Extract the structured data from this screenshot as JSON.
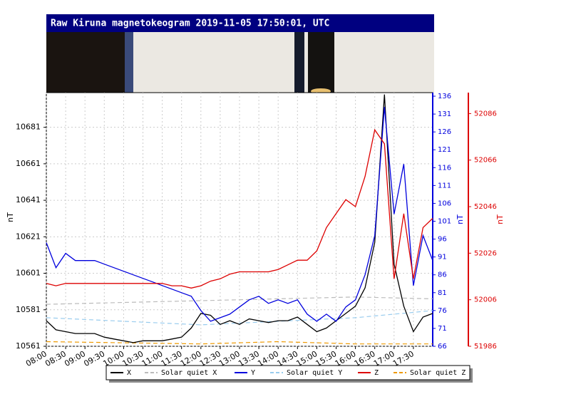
{
  "chart_data": {
    "type": "line",
    "title": "Raw Kiruna magnetokeogram 2019-11-05 17:50:01, UTC",
    "y_label": "nT",
    "y2_label": "nT",
    "y3_label": "nT",
    "x": [
      "08:00",
      "08:15",
      "08:30",
      "08:45",
      "09:00",
      "09:15",
      "09:30",
      "09:45",
      "10:00",
      "10:15",
      "10:30",
      "10:45",
      "11:00",
      "11:15",
      "11:30",
      "11:45",
      "12:00",
      "12:15",
      "12:30",
      "12:45",
      "13:00",
      "13:15",
      "13:30",
      "13:45",
      "14:00",
      "14:15",
      "14:30",
      "14:45",
      "15:00",
      "15:15",
      "15:30",
      "15:45",
      "16:00",
      "16:15",
      "16:30",
      "16:45",
      "17:00",
      "17:15",
      "17:30",
      "17:45",
      "18:00"
    ],
    "xlim": [
      "08:00",
      "18:00"
    ],
    "xticks": [
      "08:00",
      "08:30",
      "09:00",
      "09:30",
      "10:00",
      "10:30",
      "11:00",
      "11:30",
      "12:00",
      "12:30",
      "13:00",
      "13:30",
      "14:00",
      "14:30",
      "15:00",
      "15:30",
      "16:00",
      "16:30",
      "17:00",
      "17:30"
    ],
    "ylim": [
      10561,
      10700
    ],
    "yticks": [
      10561,
      10581,
      10601,
      10621,
      10641,
      10661,
      10681
    ],
    "y2lim": [
      66,
      137
    ],
    "y2ticks": [
      66,
      71,
      76,
      81,
      86,
      91,
      96,
      101,
      106,
      111,
      116,
      121,
      126,
      131,
      136
    ],
    "y3lim": [
      51986,
      52095
    ],
    "y3ticks": [
      51986,
      52006,
      52026,
      52046,
      52066,
      52086
    ],
    "grid": true,
    "series": [
      {
        "name": "X",
        "color": "#000000",
        "values": [
          10575,
          10570,
          10569,
          10568,
          10568,
          10568,
          10566,
          10565,
          10564,
          10563,
          10564,
          10564,
          10564,
          10565,
          10566,
          10571,
          10579,
          10578,
          10573,
          10575,
          10573,
          10576,
          10575,
          10574,
          10575,
          10575,
          10577,
          10573,
          10569,
          10571,
          10575,
          10579,
          10583,
          10593,
          10618,
          10699,
          10606,
          10583,
          10569,
          10577,
          10579
        ]
      },
      {
        "name": "Solar quiet X",
        "color": "#bbbbbb",
        "dashed": true,
        "x": [
          "08:00",
          "10:00",
          "12:00",
          "14:00",
          "16:00",
          "18:00"
        ],
        "values": [
          10584,
          10585,
          10586,
          10587,
          10588,
          10587
        ]
      },
      {
        "name": "Y",
        "color": "#0000dd",
        "axis": "y2",
        "values": [
          95,
          88,
          92,
          90,
          90,
          90,
          89,
          88,
          87,
          86,
          85,
          84,
          83,
          82,
          81,
          80,
          76,
          73,
          74,
          75,
          77,
          79,
          80,
          78,
          79,
          78,
          79,
          75,
          73,
          75,
          73,
          77,
          79,
          86,
          97,
          133,
          103,
          117,
          83,
          97,
          90
        ]
      },
      {
        "name": "Solar quiet Y",
        "color": "#99ccee",
        "dashed": true,
        "axis": "y2",
        "x": [
          "08:00",
          "10:00",
          "12:00",
          "14:00",
          "16:00",
          "17:00",
          "18:00"
        ],
        "values": [
          74,
          73,
          72,
          73,
          74,
          75,
          76
        ]
      },
      {
        "name": "Z",
        "color": "#dd0000",
        "axis": "y3",
        "values": [
          52013,
          52012,
          52013,
          52013,
          52013,
          52013,
          52013,
          52013,
          52013,
          52013,
          52013,
          52013,
          52013,
          52012,
          52012,
          52011,
          52012,
          52014,
          52015,
          52017,
          52018,
          52018,
          52018,
          52018,
          52019,
          52021,
          52023,
          52023,
          52027,
          52037,
          52043,
          52049,
          52046,
          52059,
          52079,
          52073,
          52015,
          52043,
          52015,
          52037,
          52041
        ]
      },
      {
        "name": "Solar quiet Z",
        "color": "#ee9900",
        "dashed": true,
        "axis": "y3",
        "x": [
          "08:00",
          "12:00",
          "14:00",
          "16:00",
          "18:00"
        ],
        "values": [
          51988,
          51987,
          51988,
          51987,
          51987
        ]
      }
    ]
  }
}
